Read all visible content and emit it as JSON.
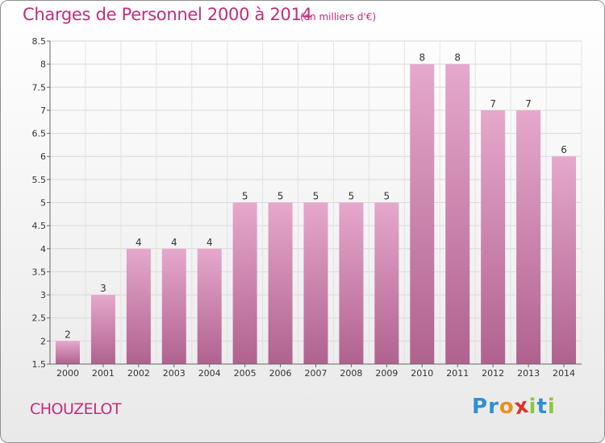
{
  "header": {
    "title": "Charges de Personnel 2000 à 2014",
    "subtitle": "(en milliers d'€)"
  },
  "footer": {
    "commune": "CHOUZELOT",
    "logo_letters": [
      {
        "char": "P",
        "color": "#2f8fd6"
      },
      {
        "char": "r",
        "color": "#2f8fd6"
      },
      {
        "char": "o",
        "color": "#e8921e"
      },
      {
        "char": "x",
        "color": "#d8342b"
      },
      {
        "char": "i",
        "color": "#8cc63e"
      },
      {
        "char": "t",
        "color": "#2f8fd6"
      },
      {
        "char": "i",
        "color": "#8cc63e"
      }
    ]
  },
  "chart_data": {
    "type": "bar",
    "title": "Charges de Personnel 2000 à 2014",
    "subtitle": "(en milliers d'€)",
    "categories": [
      "2000",
      "2001",
      "2002",
      "2003",
      "2004",
      "2005",
      "2006",
      "2007",
      "2008",
      "2009",
      "2010",
      "2011",
      "2012",
      "2013",
      "2014"
    ],
    "values": [
      2,
      3,
      4,
      4,
      4,
      5,
      5,
      5,
      5,
      5,
      8,
      8,
      7,
      7,
      6
    ],
    "value_labels": [
      "2",
      "3",
      "4",
      "4",
      "4",
      "5",
      "5",
      "5",
      "5",
      "5",
      "8",
      "8",
      "7",
      "7",
      "6"
    ],
    "ylim": [
      1.5,
      8.5
    ],
    "yticks": [
      "1.5",
      "2",
      "2.5",
      "3",
      "3.5",
      "4",
      "4.5",
      "5",
      "5.5",
      "6",
      "6.5",
      "7",
      "7.5",
      "8",
      "8.5"
    ],
    "grid": true,
    "bar_color_top": "#e6a8cc",
    "bar_color_bottom": "#b0628f",
    "text_color": "#c42c7a"
  }
}
